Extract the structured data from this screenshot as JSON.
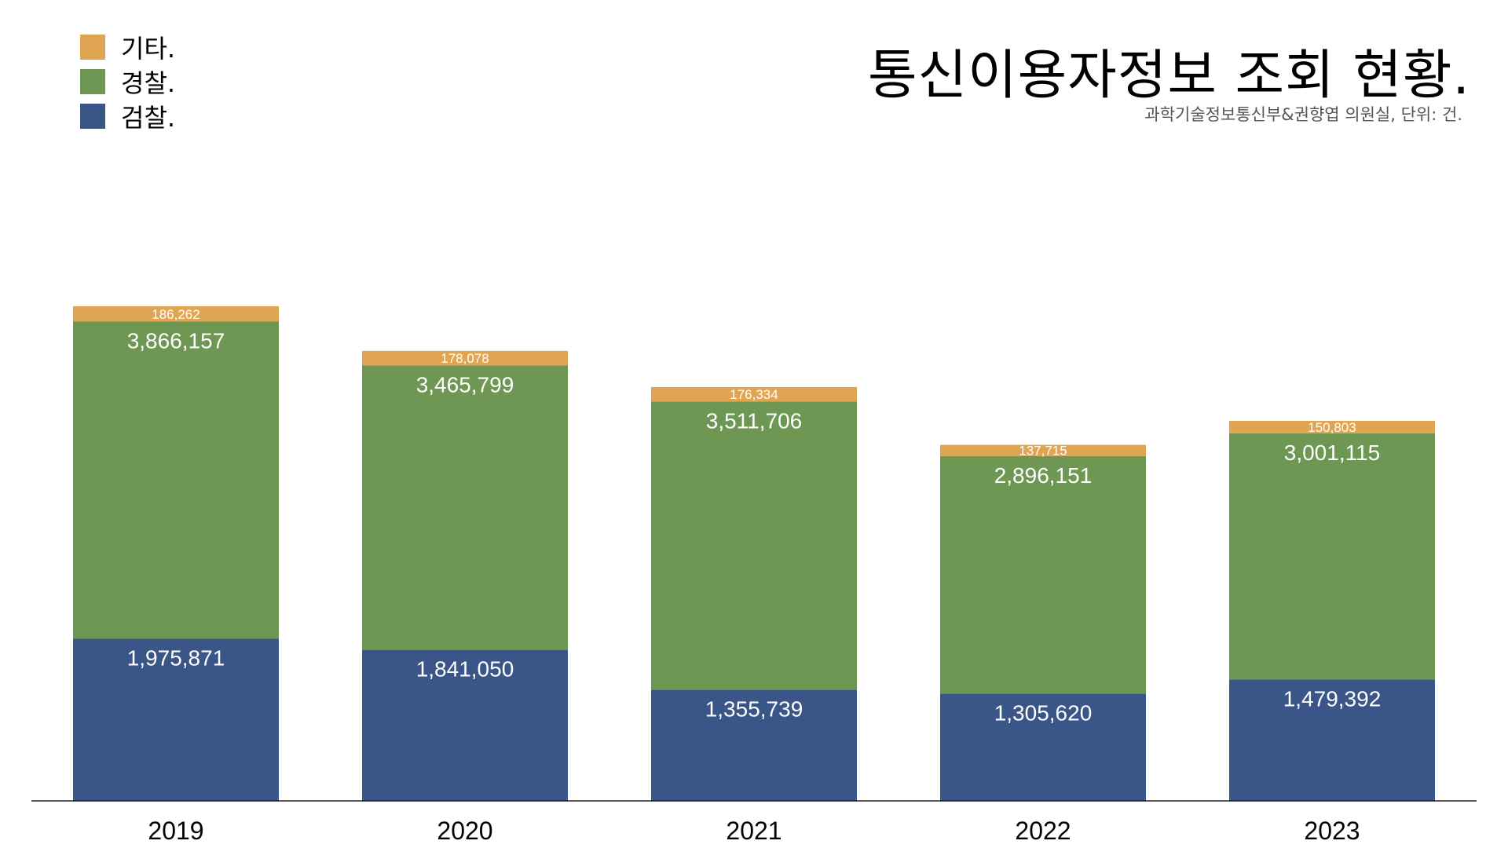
{
  "title": "통신이용자정보 조회 현황.",
  "subtitle": "과학기술정보통신부&권향엽 의원실, 단위: 건.",
  "colors": {
    "검찰.": "#3a5587",
    "경찰.": "#6d9752",
    "기타.": "#e0a552"
  },
  "chart_data": {
    "type": "bar",
    "stacked": true,
    "categories": [
      "2019",
      "2020",
      "2021",
      "2022",
      "2023"
    ],
    "series": [
      {
        "name": "검찰.",
        "values": [
          1975871,
          1841050,
          1355739,
          1305620,
          1479392
        ]
      },
      {
        "name": "경찰.",
        "values": [
          3866157,
          3465799,
          3511706,
          2896151,
          3001115
        ]
      },
      {
        "name": "기타.",
        "values": [
          186262,
          178078,
          176334,
          137715,
          150803
        ]
      }
    ],
    "legend_order": [
      "기타.",
      "경찰.",
      "검찰."
    ],
    "legend_position": "top-left",
    "grid": false
  }
}
